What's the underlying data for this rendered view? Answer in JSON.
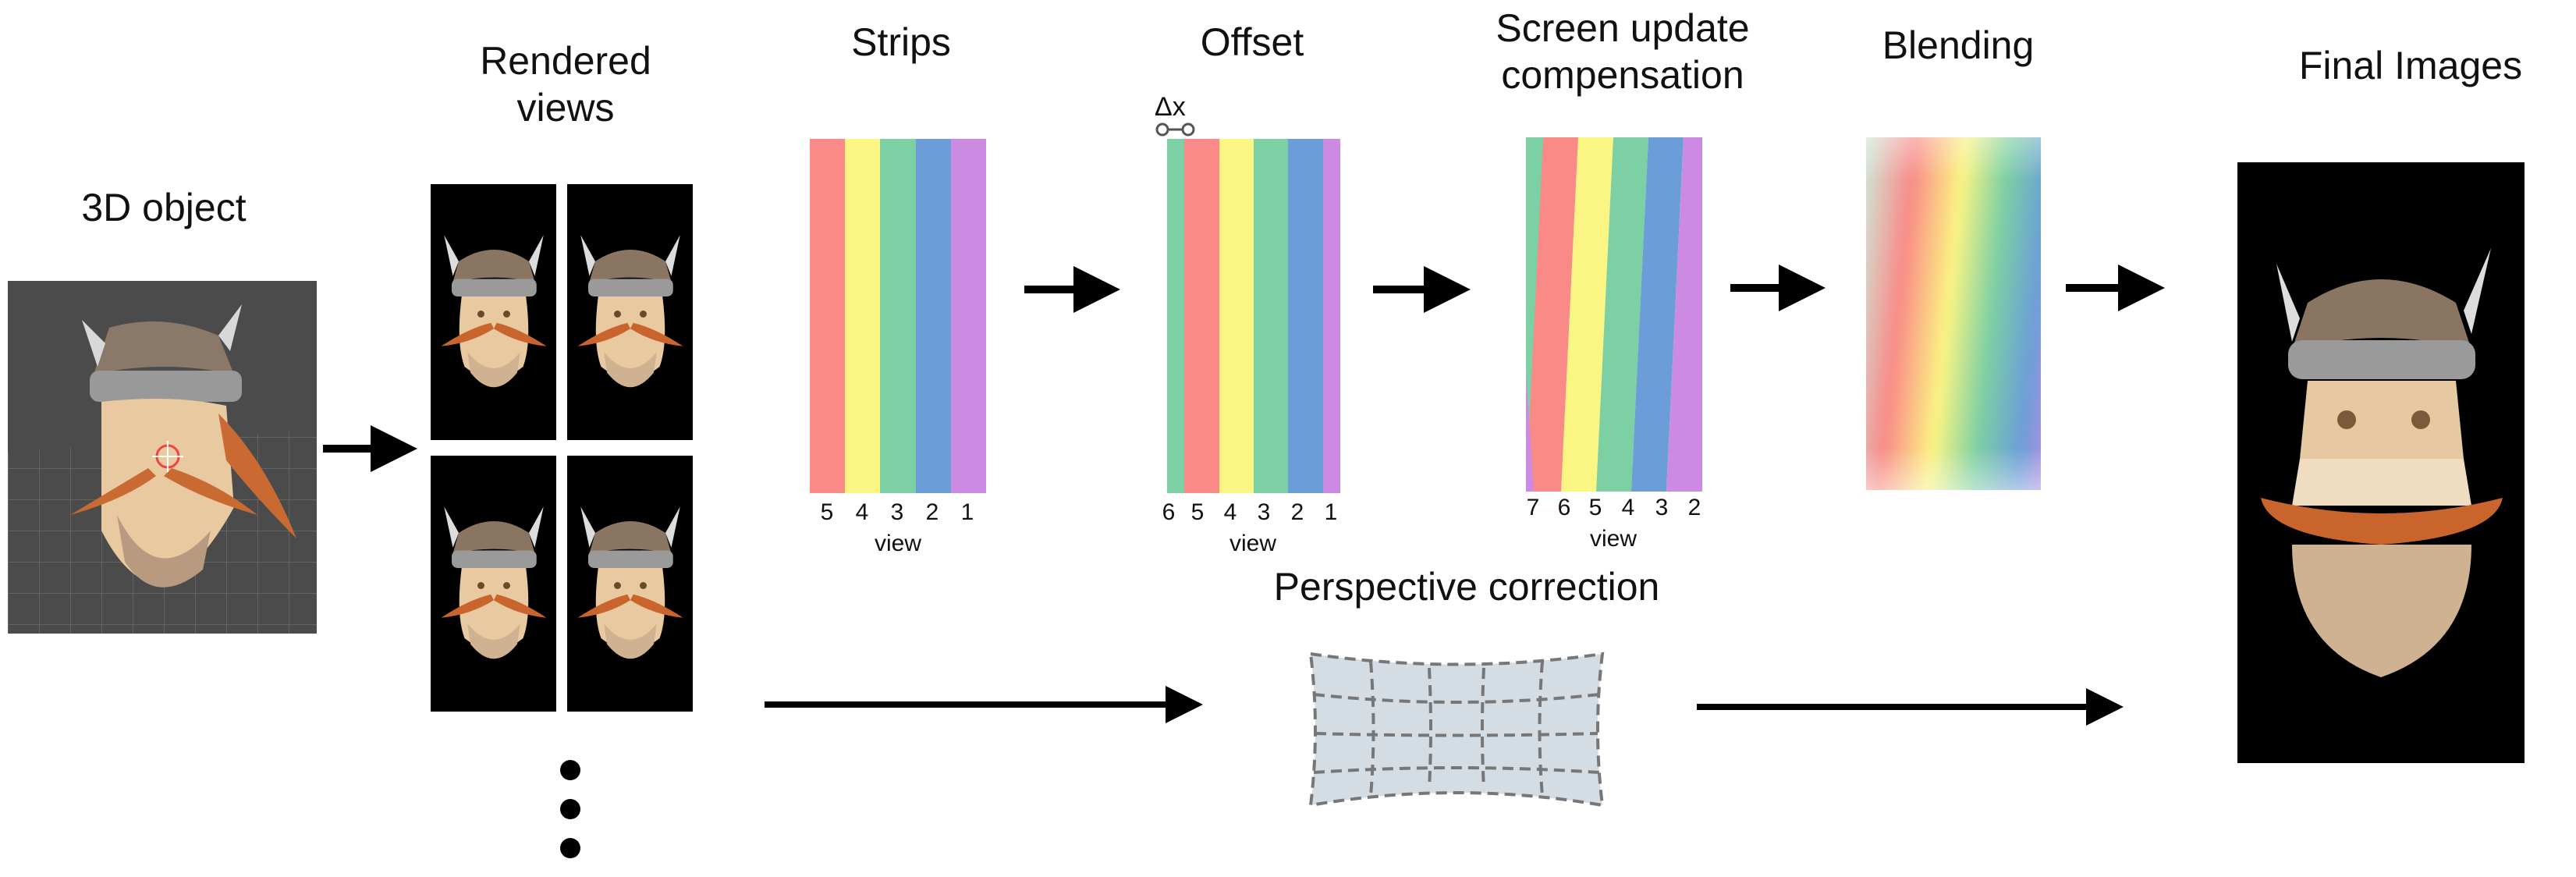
{
  "stages": {
    "object3d": "3D object",
    "rendered": [
      "Rendered",
      "views"
    ],
    "strips": "Strips",
    "offset": "Offset",
    "compensation": [
      "Screen update",
      "compensation"
    ],
    "blending": "Blending",
    "final": "Final Images",
    "perspective": "Perspective correction"
  },
  "offset_symbol": "Δx",
  "axis_label": "view",
  "strips_views": [
    "5",
    "4",
    "3",
    "2",
    "1"
  ],
  "offset_views": [
    "6",
    "5",
    "4",
    "3",
    "2",
    "1"
  ],
  "comp_views": [
    "7",
    "6",
    "5",
    "4",
    "3",
    "2"
  ],
  "colors": {
    "red": "#f98a88",
    "yellow": "#fbf583",
    "green": "#7dd0a3",
    "blue": "#6b9ed8",
    "purple": "#cc8ae3"
  }
}
